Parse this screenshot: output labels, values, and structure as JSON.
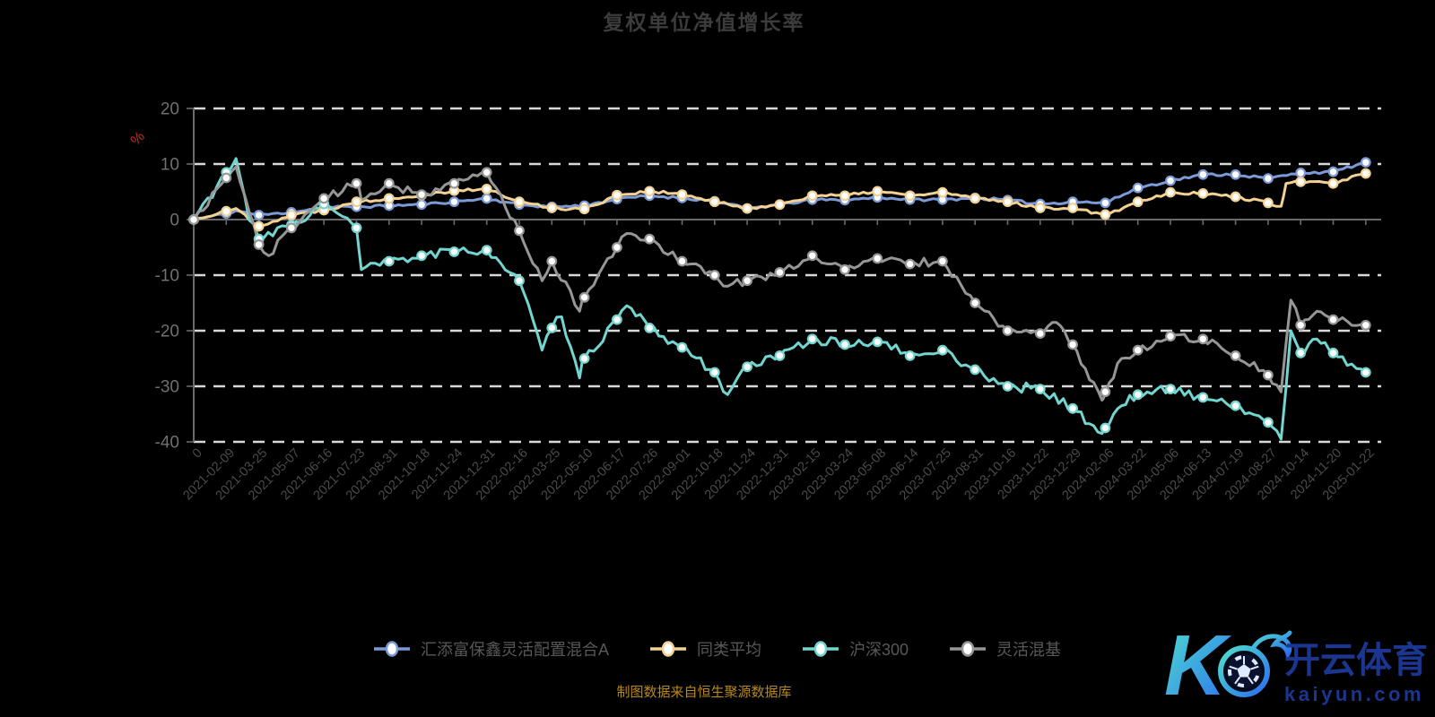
{
  "title": "复权单位净值增长率",
  "footer": "制图数据来自恒生聚源数据库",
  "logo": {
    "letter": "K",
    "text_cn": "开云体育",
    "text_en": "kaiyun.com",
    "gradient": [
      "#4fe0cf",
      "#2b6cf0"
    ],
    "text_color": "#1a3690"
  },
  "palette": {
    "background": "#000000",
    "title": "#3c3c3c",
    "axis_line": "#6a6a6a",
    "grid_dash": "#d9d9d9",
    "y_label": "#707070",
    "x_label": "#4a4a4a",
    "legend_text": "#585858",
    "unit_label": "#c03028",
    "footer_text": "#b8891a",
    "marker_fill": "#ffffff"
  },
  "chart_data": {
    "type": "line",
    "title": "复权单位净值增长率",
    "ylabel": "%",
    "ylim": [
      -40,
      20
    ],
    "y_ticks": [
      20,
      10,
      0,
      -10,
      -20,
      -30,
      -40
    ],
    "grid": "horizontal-dashed",
    "legend_position": "bottom",
    "x_unit": "tick index 0-36; fractional values are intermediate dates",
    "x_tick_labels": [
      "0",
      "2021-02-09",
      "2021-03-25",
      "2021-05-07",
      "2021-06-16",
      "2021-07-23",
      "2021-08-31",
      "2021-10-18",
      "2021-11-24",
      "2021-12-31",
      "2022-02-16",
      "2022-03-25",
      "2022-05-10",
      "2022-06-17",
      "2022-07-26",
      "2022-09-01",
      "2022-10-18",
      "2022-11-24",
      "2022-12-31",
      "2023-02-15",
      "2023-03-24",
      "2023-05-08",
      "2023-06-14",
      "2023-07-25",
      "2023-08-31",
      "2023-10-16",
      "2023-11-22",
      "2023-12-29",
      "2024-02-06",
      "2024-03-22",
      "2024-05-06",
      "2024-06-13",
      "2024-07-19",
      "2024-08-27",
      "2024-10-14",
      "2024-11-20",
      "2025-01-22"
    ],
    "series": [
      {
        "id": "fund",
        "name": "汇添富保鑫灵活配置混合A",
        "color": "#7b9ad6",
        "marker": "white-circle",
        "noise": 0.25,
        "seed": 11,
        "points": [
          [
            0,
            0
          ],
          [
            1,
            1.1
          ],
          [
            1.3,
            1.6
          ],
          [
            2,
            0.8
          ],
          [
            3,
            1.3
          ],
          [
            4,
            2.2
          ],
          [
            5,
            2.3
          ],
          [
            6,
            2.5
          ],
          [
            7,
            2.7
          ],
          [
            8,
            3.2
          ],
          [
            9,
            3.8
          ],
          [
            10,
            2.7
          ],
          [
            11,
            2.3
          ],
          [
            12,
            2.5
          ],
          [
            13,
            3.7
          ],
          [
            14,
            4.3
          ],
          [
            15,
            3.9
          ],
          [
            16,
            3.3
          ],
          [
            17,
            2.0
          ],
          [
            18,
            2.7
          ],
          [
            19,
            3.6
          ],
          [
            20,
            3.5
          ],
          [
            21,
            4.0
          ],
          [
            22,
            3.6
          ],
          [
            23,
            3.6
          ],
          [
            24,
            3.9
          ],
          [
            25,
            3.5
          ],
          [
            26,
            2.8
          ],
          [
            27,
            3.2
          ],
          [
            28,
            3.0
          ],
          [
            29,
            5.7
          ],
          [
            30,
            7.0
          ],
          [
            31,
            8.1
          ],
          [
            32,
            8.1
          ],
          [
            33,
            7.4
          ],
          [
            34,
            8.4
          ],
          [
            35,
            8.6
          ],
          [
            36,
            10.3
          ]
        ]
      },
      {
        "id": "peer-avg",
        "name": "同类平均",
        "color": "#f3d192",
        "marker": "white-circle",
        "noise": 0.3,
        "seed": 22,
        "points": [
          [
            0,
            0
          ],
          [
            1,
            1.5
          ],
          [
            1.3,
            2.0
          ],
          [
            2,
            -1.2
          ],
          [
            3,
            0.8
          ],
          [
            4,
            1.7
          ],
          [
            5,
            3.2
          ],
          [
            6,
            3.8
          ],
          [
            7,
            4.4
          ],
          [
            8,
            5.2
          ],
          [
            9,
            5.5
          ],
          [
            10,
            3.2
          ],
          [
            11,
            2.1
          ],
          [
            12,
            1.9
          ],
          [
            13,
            4.4
          ],
          [
            14,
            5.1
          ],
          [
            15,
            4.5
          ],
          [
            16,
            3.2
          ],
          [
            17,
            2.0
          ],
          [
            18,
            2.7
          ],
          [
            19,
            4.3
          ],
          [
            20,
            4.3
          ],
          [
            21,
            5.1
          ],
          [
            22,
            4.3
          ],
          [
            23,
            4.9
          ],
          [
            24,
            3.8
          ],
          [
            25,
            3.2
          ],
          [
            26,
            2.1
          ],
          [
            27,
            2.1
          ],
          [
            28,
            0.9
          ],
          [
            29,
            3.2
          ],
          [
            30,
            4.9
          ],
          [
            31,
            4.7
          ],
          [
            32,
            4.1
          ],
          [
            33,
            3.0
          ],
          [
            33.4,
            2.4
          ],
          [
            33.55,
            6.5
          ],
          [
            34,
            6.8
          ],
          [
            35,
            6.5
          ],
          [
            36,
            8.3
          ]
        ]
      },
      {
        "id": "hs300",
        "name": "沪深300",
        "color": "#72d5cf",
        "marker": "white-circle",
        "noise": 0.95,
        "seed": 33,
        "points": [
          [
            0,
            0
          ],
          [
            1,
            8.5
          ],
          [
            1.3,
            11
          ],
          [
            1.7,
            0
          ],
          [
            2,
            -3.5
          ],
          [
            3,
            -1.0
          ],
          [
            4,
            2.8
          ],
          [
            5,
            -1.5
          ],
          [
            5.15,
            -9
          ],
          [
            6,
            -7.5
          ],
          [
            7,
            -6.5
          ],
          [
            8,
            -5.8
          ],
          [
            9,
            -5.5
          ],
          [
            10,
            -11
          ],
          [
            10.7,
            -23.5
          ],
          [
            11,
            -19.5
          ],
          [
            11.3,
            -17.5
          ],
          [
            11.85,
            -28.5
          ],
          [
            12,
            -25
          ],
          [
            13,
            -18
          ],
          [
            13.3,
            -15.5
          ],
          [
            14,
            -19.5
          ],
          [
            15,
            -23
          ],
          [
            16,
            -27.5
          ],
          [
            16.4,
            -31.5
          ],
          [
            17,
            -26.5
          ],
          [
            18,
            -24.5
          ],
          [
            19,
            -21.5
          ],
          [
            20,
            -22.5
          ],
          [
            21,
            -22
          ],
          [
            22,
            -24.5
          ],
          [
            23,
            -23.5
          ],
          [
            24,
            -27
          ],
          [
            25,
            -30
          ],
          [
            26,
            -30.5
          ],
          [
            27,
            -34
          ],
          [
            27.9,
            -38.5
          ],
          [
            28,
            -37.5
          ],
          [
            28.5,
            -33.5
          ],
          [
            29,
            -31.5
          ],
          [
            30,
            -30.5
          ],
          [
            31,
            -32
          ],
          [
            32,
            -33.5
          ],
          [
            33,
            -36.5
          ],
          [
            33.4,
            -39.5
          ],
          [
            33.7,
            -20
          ],
          [
            34,
            -24
          ],
          [
            34.5,
            -21.5
          ],
          [
            35,
            -24
          ],
          [
            36,
            -27.5
          ]
        ]
      },
      {
        "id": "flex-mix",
        "name": "灵活混基",
        "color": "#969696",
        "marker": "white-circle",
        "noise": 0.85,
        "seed": 44,
        "points": [
          [
            0,
            0
          ],
          [
            1,
            7.5
          ],
          [
            1.3,
            9.5
          ],
          [
            1.7,
            1.5
          ],
          [
            2,
            -4.5
          ],
          [
            2.3,
            -6.5
          ],
          [
            3,
            -1.5
          ],
          [
            4,
            3.8
          ],
          [
            5,
            6.5
          ],
          [
            5.15,
            3.5
          ],
          [
            6,
            6.5
          ],
          [
            7,
            4.5
          ],
          [
            8,
            6.5
          ],
          [
            9,
            8.5
          ],
          [
            10,
            -2
          ],
          [
            10.7,
            -11
          ],
          [
            11,
            -7.5
          ],
          [
            11.85,
            -16.5
          ],
          [
            12,
            -14
          ],
          [
            13,
            -5
          ],
          [
            13.3,
            -2.5
          ],
          [
            14,
            -3.5
          ],
          [
            15,
            -7.5
          ],
          [
            16,
            -10
          ],
          [
            16.4,
            -12
          ],
          [
            17,
            -11
          ],
          [
            18,
            -9.5
          ],
          [
            19,
            -6.5
          ],
          [
            20,
            -9
          ],
          [
            21,
            -7
          ],
          [
            22,
            -8
          ],
          [
            23,
            -7.5
          ],
          [
            24,
            -15
          ],
          [
            25,
            -20
          ],
          [
            26,
            -20.5
          ],
          [
            26.5,
            -18.5
          ],
          [
            27,
            -22.5
          ],
          [
            27.9,
            -32.5
          ],
          [
            28,
            -31
          ],
          [
            28.5,
            -25
          ],
          [
            29,
            -23.5
          ],
          [
            30,
            -21
          ],
          [
            31,
            -21.5
          ],
          [
            32,
            -24.5
          ],
          [
            33,
            -28
          ],
          [
            33.4,
            -31
          ],
          [
            33.7,
            -14.5
          ],
          [
            34,
            -19
          ],
          [
            34.5,
            -16.5
          ],
          [
            35,
            -18
          ],
          [
            36,
            -19
          ]
        ]
      }
    ]
  }
}
